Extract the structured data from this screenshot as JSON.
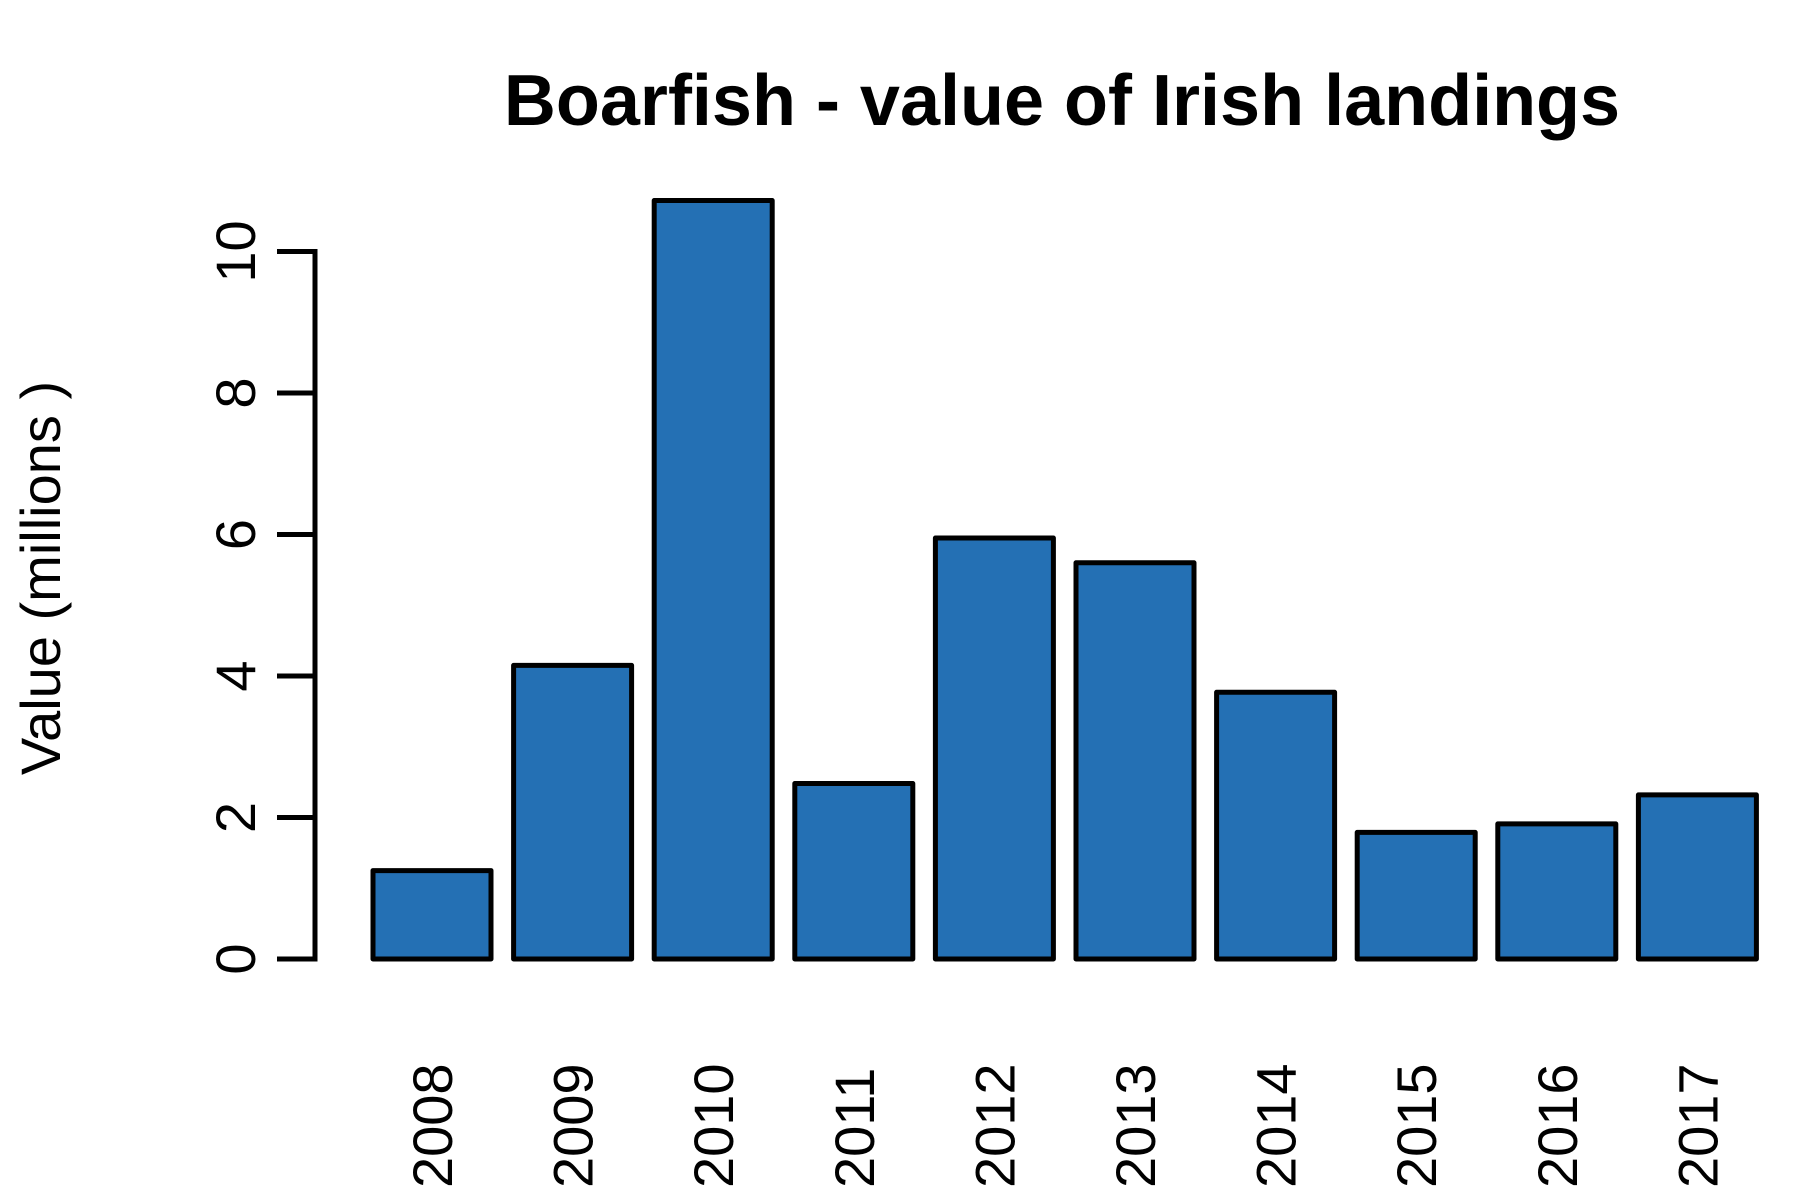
{
  "chart_data": {
    "type": "bar",
    "title": "Boarfish - value of Irish landings",
    "xlabel": "",
    "ylabel": "Value (millions )",
    "categories": [
      "2008",
      "2009",
      "2010",
      "2011",
      "2012",
      "2013",
      "2014",
      "2015",
      "2016",
      "2017"
    ],
    "values": [
      1.25,
      4.15,
      10.72,
      2.48,
      5.95,
      5.6,
      3.77,
      1.79,
      1.91,
      2.32
    ],
    "ylim": [
      0,
      10
    ],
    "yticks": [
      "0",
      "2",
      "4",
      "6",
      "8",
      "10"
    ],
    "grid": false,
    "legend": "none",
    "bar_color": "#2470B4",
    "bar_edge_color": "#000000"
  }
}
